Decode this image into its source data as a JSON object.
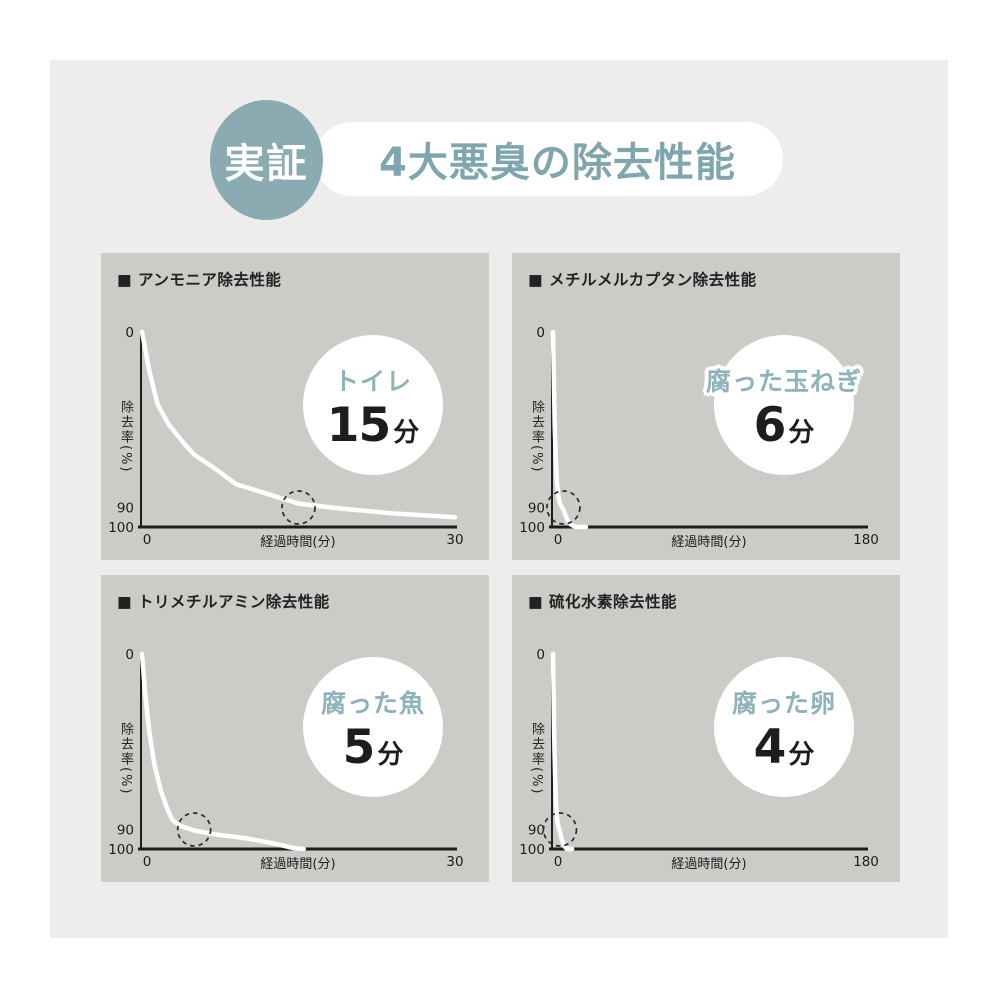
{
  "header": {
    "badge_label": "実証",
    "title": "4大悪臭の除去性能"
  },
  "colors": {
    "page_bg": "#ffffff",
    "content_bg": "#ededec",
    "panel_bg": "#cccbc7",
    "header_badge_teal": "#8aabb2",
    "title_teal": "#7fa6ae",
    "badge_label_teal": "#8fb3ba",
    "curve_white": "#ffffff",
    "axis_black": "#1d1d1d"
  },
  "chart_data": [
    {
      "type": "line",
      "title": "■ アンモニア除去性能",
      "badge": {
        "label": "トイレ",
        "value": "15",
        "unit": "分"
      },
      "ylabel": "除去率(%)",
      "xlabel": "経過時間(分)",
      "y_ticks": [
        "0",
        "90",
        "100"
      ],
      "x_ticks": [
        "0",
        "30"
      ],
      "xmax": 30,
      "ylim": [
        0,
        100
      ],
      "y_axis_inverted": true,
      "marked_point": {
        "x": 15,
        "y": 90
      },
      "points": [
        [
          0,
          0
        ],
        [
          0.7,
          20
        ],
        [
          1.5,
          37
        ],
        [
          2.5,
          47
        ],
        [
          4,
          57
        ],
        [
          5,
          63
        ],
        [
          7,
          70
        ],
        [
          9,
          78
        ],
        [
          12,
          83
        ],
        [
          15,
          88
        ],
        [
          19,
          90.5
        ],
        [
          24,
          93
        ],
        [
          30,
          95
        ]
      ]
    },
    {
      "type": "line",
      "title": "■ メチルメルカプタン除去性能",
      "badge": {
        "label": "腐った玉ねぎ",
        "value": "6",
        "unit": "分"
      },
      "ylabel": "除去率(%)",
      "xlabel": "経過時間(分)",
      "y_ticks": [
        "0",
        "90",
        "100"
      ],
      "x_ticks": [
        "0",
        "180"
      ],
      "xmax": 180,
      "ylim": [
        0,
        100
      ],
      "y_axis_inverted": true,
      "marked_point": {
        "x": 6,
        "y": 90
      },
      "points": [
        [
          0,
          0
        ],
        [
          0.5,
          25
        ],
        [
          1,
          48
        ],
        [
          1.6,
          65
        ],
        [
          2.2,
          76
        ],
        [
          3,
          84
        ],
        [
          4,
          88
        ],
        [
          6,
          91
        ],
        [
          8,
          96
        ],
        [
          10,
          98.5
        ],
        [
          13,
          100
        ],
        [
          19,
          100
        ]
      ]
    },
    {
      "type": "line",
      "title": "■ トリメチルアミン除去性能",
      "badge": {
        "label": "腐った魚",
        "value": "5",
        "unit": "分"
      },
      "ylabel": "除去率(%)",
      "xlabel": "経過時間(分)",
      "y_ticks": [
        "0",
        "90",
        "100"
      ],
      "x_ticks": [
        "0",
        "30"
      ],
      "xmax": 30,
      "ylim": [
        0,
        100
      ],
      "y_axis_inverted": true,
      "marked_point": {
        "x": 5,
        "y": 90
      },
      "points": [
        [
          0,
          0
        ],
        [
          0.3,
          20
        ],
        [
          0.7,
          40
        ],
        [
          1.2,
          57
        ],
        [
          1.8,
          70
        ],
        [
          2.4,
          79
        ],
        [
          2.9,
          85
        ],
        [
          3.6,
          88
        ],
        [
          5,
          90.5
        ],
        [
          7,
          92.5
        ],
        [
          10,
          94.5
        ],
        [
          12.5,
          97
        ],
        [
          14.5,
          99.5
        ],
        [
          15.5,
          100
        ]
      ]
    },
    {
      "type": "line",
      "title": "■ 硫化水素除去性能",
      "badge": {
        "label": "腐った卵",
        "value": "4",
        "unit": "分"
      },
      "ylabel": "除去率(%)",
      "xlabel": "経過時間(分)",
      "y_ticks": [
        "0",
        "90",
        "100"
      ],
      "x_ticks": [
        "0",
        "180"
      ],
      "xmax": 180,
      "ylim": [
        0,
        100
      ],
      "y_axis_inverted": true,
      "marked_point": {
        "x": 4,
        "y": 90
      },
      "points": [
        [
          0,
          0
        ],
        [
          0.4,
          25
        ],
        [
          0.8,
          48
        ],
        [
          1.3,
          66
        ],
        [
          1.8,
          78
        ],
        [
          2.4,
          85
        ],
        [
          3.2,
          89
        ],
        [
          4,
          91
        ],
        [
          5,
          95
        ],
        [
          6.5,
          98.5
        ],
        [
          8,
          100
        ],
        [
          11,
          100
        ]
      ]
    }
  ]
}
